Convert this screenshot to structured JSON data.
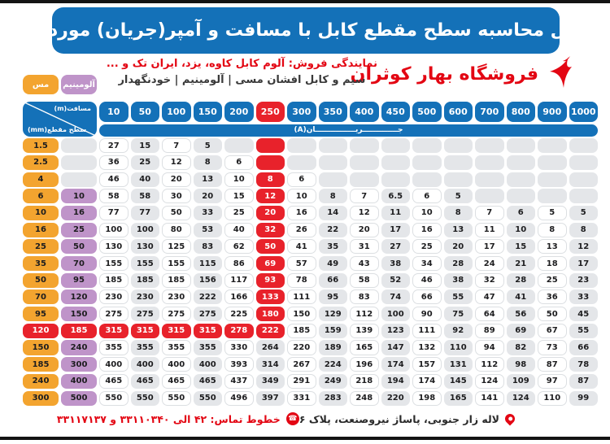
{
  "title_bar": {
    "title": "جدول محاسبه سطح مقطع کابل با مسافت و آمپر(جریان) مورد نیاز"
  },
  "header": {
    "store_name": "فروشگاه بهار کوثران",
    "dealer_line": "نمایندگی فروش: آلوم کابل کاوه، یزد، ایران تک و ...",
    "products_line": "سیم و کابل افشان مسی | آلومینیم | خودنگهدار"
  },
  "legend": {
    "copper_label": "مس",
    "aluminum_label": "آلومینیم"
  },
  "table": {
    "corner_top_label": "مسافت(m)",
    "corner_bottom_label": "سطح مقطع(mm)",
    "current_band_label": "جــــــــــــــریــــــــــــــــان(A)",
    "distances_m": [
      "10",
      "50",
      "100",
      "150",
      "200",
      "250",
      "300",
      "350",
      "400",
      "450",
      "500",
      "600",
      "700",
      "800",
      "900",
      "1000"
    ],
    "highlight": {
      "distance_col_index": 5,
      "row_index": 11
    },
    "rows": [
      {
        "copper_mm2": "1.5",
        "aluminum_mm2": "",
        "amps": [
          "27",
          "15",
          "7",
          "5",
          "",
          "",
          "",
          "",
          "",
          "",
          "",
          "",
          "",
          "",
          "",
          ""
        ]
      },
      {
        "copper_mm2": "2.5",
        "aluminum_mm2": "",
        "amps": [
          "36",
          "25",
          "12",
          "8",
          "6",
          "",
          "",
          "",
          "",
          "",
          "",
          "",
          "",
          "",
          "",
          ""
        ]
      },
      {
        "copper_mm2": "4",
        "aluminum_mm2": "",
        "amps": [
          "46",
          "40",
          "20",
          "13",
          "10",
          "8",
          "6",
          "",
          "",
          "",
          "",
          "",
          "",
          "",
          "",
          ""
        ]
      },
      {
        "copper_mm2": "6",
        "aluminum_mm2": "10",
        "amps": [
          "58",
          "58",
          "30",
          "20",
          "15",
          "12",
          "10",
          "8",
          "7",
          "6.5",
          "6",
          "5",
          "",
          "",
          "",
          ""
        ]
      },
      {
        "copper_mm2": "10",
        "aluminum_mm2": "16",
        "amps": [
          "77",
          "77",
          "50",
          "33",
          "25",
          "20",
          "16",
          "14",
          "12",
          "11",
          "10",
          "8",
          "7",
          "6",
          "5",
          "5"
        ]
      },
      {
        "copper_mm2": "16",
        "aluminum_mm2": "25",
        "amps": [
          "100",
          "100",
          "80",
          "53",
          "40",
          "32",
          "26",
          "22",
          "20",
          "17",
          "16",
          "13",
          "11",
          "10",
          "8",
          "8"
        ]
      },
      {
        "copper_mm2": "25",
        "aluminum_mm2": "50",
        "amps": [
          "130",
          "130",
          "125",
          "83",
          "62",
          "50",
          "41",
          "35",
          "31",
          "27",
          "25",
          "20",
          "17",
          "15",
          "13",
          "12"
        ]
      },
      {
        "copper_mm2": "35",
        "aluminum_mm2": "70",
        "amps": [
          "155",
          "155",
          "155",
          "115",
          "86",
          "69",
          "57",
          "49",
          "43",
          "38",
          "34",
          "28",
          "24",
          "21",
          "18",
          "17"
        ]
      },
      {
        "copper_mm2": "50",
        "aluminum_mm2": "95",
        "amps": [
          "185",
          "185",
          "185",
          "156",
          "117",
          "93",
          "78",
          "66",
          "58",
          "52",
          "46",
          "38",
          "32",
          "28",
          "25",
          "23"
        ]
      },
      {
        "copper_mm2": "70",
        "aluminum_mm2": "120",
        "amps": [
          "230",
          "230",
          "230",
          "222",
          "166",
          "133",
          "111",
          "95",
          "83",
          "74",
          "66",
          "55",
          "47",
          "41",
          "36",
          "33"
        ]
      },
      {
        "copper_mm2": "95",
        "aluminum_mm2": "150",
        "amps": [
          "275",
          "275",
          "275",
          "275",
          "225",
          "180",
          "150",
          "129",
          "112",
          "100",
          "90",
          "75",
          "64",
          "56",
          "50",
          "45"
        ]
      },
      {
        "copper_mm2": "120",
        "aluminum_mm2": "185",
        "amps": [
          "315",
          "315",
          "315",
          "315",
          "278",
          "222",
          "185",
          "159",
          "139",
          "123",
          "111",
          "92",
          "89",
          "69",
          "67",
          "55"
        ]
      },
      {
        "copper_mm2": "150",
        "aluminum_mm2": "240",
        "amps": [
          "355",
          "355",
          "355",
          "355",
          "330",
          "264",
          "220",
          "189",
          "165",
          "147",
          "132",
          "110",
          "94",
          "82",
          "73",
          "66"
        ]
      },
      {
        "copper_mm2": "185",
        "aluminum_mm2": "300",
        "amps": [
          "400",
          "400",
          "400",
          "400",
          "393",
          "314",
          "267",
          "224",
          "196",
          "174",
          "157",
          "131",
          "112",
          "98",
          "87",
          "78"
        ]
      },
      {
        "copper_mm2": "240",
        "aluminum_mm2": "400",
        "amps": [
          "465",
          "465",
          "465",
          "465",
          "437",
          "349",
          "291",
          "249",
          "218",
          "194",
          "174",
          "145",
          "124",
          "109",
          "97",
          "87"
        ]
      },
      {
        "copper_mm2": "300",
        "aluminum_mm2": "500",
        "amps": [
          "550",
          "550",
          "550",
          "550",
          "496",
          "397",
          "331",
          "283",
          "248",
          "220",
          "198",
          "165",
          "141",
          "124",
          "110",
          "99"
        ]
      }
    ]
  },
  "footer": {
    "phone_line": "خطوط تماس: ۴۲ الی ۳۳۱۱۰۳۴۰ و ۳۳۱۱۷۱۳۷",
    "address_line": "لاله زار جنوبی، پاساژ نیروصنعت، پلاک ۶"
  },
  "colors": {
    "header_blue": "#1471b8",
    "highlight_red": "#e8222b",
    "copper_orange": "#f3a42f",
    "aluminum_purple": "#bf94c9",
    "cell_gray": "#e4e6e9",
    "accent_red_text": "#e30613"
  }
}
